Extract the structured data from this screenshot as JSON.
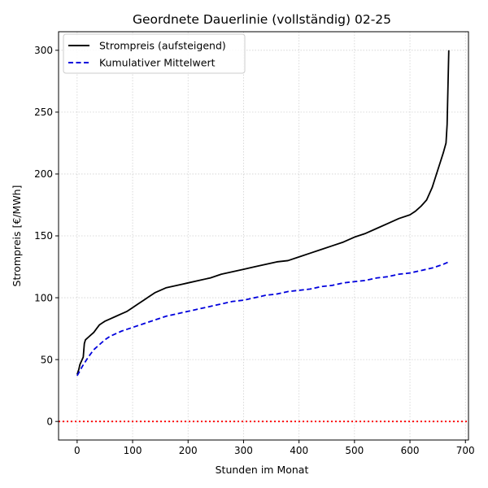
{
  "chart_data": {
    "type": "line",
    "title": "Geordnete Dauerlinie (vollständig) 02-25",
    "xlabel": "Stunden im Monat",
    "ylabel": "Strompreis [€/MWh]",
    "xlim": [
      -33.5,
      705.5
    ],
    "ylim": [
      -15,
      315
    ],
    "xticks": [
      0,
      100,
      200,
      300,
      400,
      500,
      600,
      700
    ],
    "yticks": [
      0,
      50,
      100,
      150,
      200,
      250,
      300
    ],
    "xtick_labels": [
      "0",
      "100",
      "200",
      "300",
      "400",
      "500",
      "600",
      "700"
    ],
    "ytick_labels": [
      "0",
      "50",
      "100",
      "150",
      "200",
      "250",
      "300"
    ],
    "grid": true,
    "legend_position": "top-left",
    "series": [
      {
        "name": "Strompreis (aufsteigend)",
        "color": "#000000",
        "style": "solid",
        "points": [
          [
            0,
            38
          ],
          [
            3,
            42
          ],
          [
            5,
            46
          ],
          [
            8,
            49
          ],
          [
            11,
            52
          ],
          [
            13,
            63
          ],
          [
            15,
            66
          ],
          [
            20,
            68
          ],
          [
            25,
            70
          ],
          [
            30,
            72
          ],
          [
            35,
            75
          ],
          [
            40,
            78
          ],
          [
            50,
            81
          ],
          [
            60,
            83
          ],
          [
            70,
            85
          ],
          [
            80,
            87
          ],
          [
            90,
            89
          ],
          [
            100,
            92
          ],
          [
            110,
            95
          ],
          [
            120,
            98
          ],
          [
            130,
            101
          ],
          [
            140,
            104
          ],
          [
            150,
            106
          ],
          [
            160,
            108
          ],
          [
            170,
            109
          ],
          [
            180,
            110
          ],
          [
            190,
            111
          ],
          [
            200,
            112
          ],
          [
            220,
            114
          ],
          [
            240,
            116
          ],
          [
            260,
            119
          ],
          [
            280,
            121
          ],
          [
            300,
            123
          ],
          [
            320,
            125
          ],
          [
            340,
            127
          ],
          [
            360,
            129
          ],
          [
            380,
            130
          ],
          [
            400,
            133
          ],
          [
            420,
            136
          ],
          [
            440,
            139
          ],
          [
            460,
            142
          ],
          [
            480,
            145
          ],
          [
            500,
            149
          ],
          [
            520,
            152
          ],
          [
            540,
            156
          ],
          [
            560,
            160
          ],
          [
            580,
            164
          ],
          [
            600,
            167
          ],
          [
            610,
            170
          ],
          [
            620,
            174
          ],
          [
            630,
            179
          ],
          [
            635,
            184
          ],
          [
            640,
            189
          ],
          [
            645,
            196
          ],
          [
            650,
            203
          ],
          [
            655,
            210
          ],
          [
            660,
            217
          ],
          [
            665,
            225
          ],
          [
            667,
            240
          ],
          [
            668,
            260
          ],
          [
            669,
            280
          ],
          [
            670,
            300
          ]
        ]
      },
      {
        "name": "Kumulativer Mittelwert",
        "color": "#0000dd",
        "style": "dashed",
        "points": [
          [
            0,
            37
          ],
          [
            5,
            41
          ],
          [
            10,
            45
          ],
          [
            20,
            52
          ],
          [
            30,
            58
          ],
          [
            40,
            62
          ],
          [
            50,
            66
          ],
          [
            60,
            69
          ],
          [
            70,
            71
          ],
          [
            80,
            73
          ],
          [
            100,
            76
          ],
          [
            120,
            79
          ],
          [
            140,
            82
          ],
          [
            160,
            85
          ],
          [
            180,
            87
          ],
          [
            200,
            89
          ],
          [
            220,
            91
          ],
          [
            240,
            93
          ],
          [
            260,
            95
          ],
          [
            280,
            97
          ],
          [
            300,
            98
          ],
          [
            320,
            100
          ],
          [
            340,
            102
          ],
          [
            360,
            103
          ],
          [
            380,
            105
          ],
          [
            400,
            106
          ],
          [
            420,
            107
          ],
          [
            440,
            109
          ],
          [
            460,
            110
          ],
          [
            480,
            112
          ],
          [
            500,
            113
          ],
          [
            520,
            114
          ],
          [
            540,
            116
          ],
          [
            560,
            117
          ],
          [
            580,
            119
          ],
          [
            600,
            120
          ],
          [
            620,
            122
          ],
          [
            640,
            124
          ],
          [
            660,
            127
          ],
          [
            670,
            129
          ]
        ]
      }
    ],
    "reference_line": {
      "y": 0,
      "color": "#ff0000",
      "style": "dotted"
    }
  }
}
